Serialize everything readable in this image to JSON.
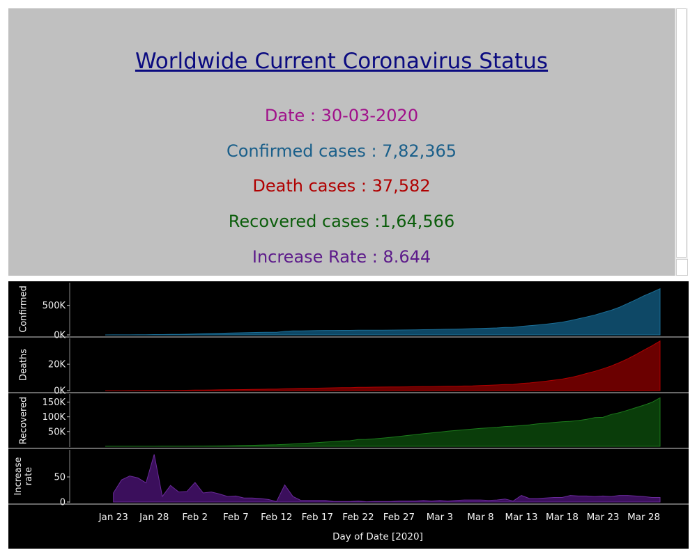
{
  "header": {
    "title": "Worldwide Current Coronavirus Status",
    "date_line": "Date  : 30-03-2020",
    "confirmed_line": "Confirmed cases : 7,82,365",
    "deaths_line": "Death cases :  37,582",
    "recovered_line": "Recovered cases :1,64,566",
    "rate_line": "Increase Rate : 8.644",
    "colors": {
      "title": "#0b0b80",
      "date": "#a0108a",
      "confirmed": "#1a5f8a",
      "deaths": "#b00000",
      "recovered": "#0b5d0b",
      "rate": "#5c1a8a"
    }
  },
  "chart_data": {
    "type": "area",
    "xlabel": "Day of Date [2020]",
    "x_ticks": [
      "Jan 23",
      "Jan 28",
      "Feb 2",
      "Feb 7",
      "Feb 12",
      "Feb 17",
      "Feb 22",
      "Feb 27",
      "Mar 3",
      "Mar 8",
      "Mar 13",
      "Mar 18",
      "Mar 23",
      "Mar 28"
    ],
    "x_start": "Jan 22",
    "x_end": "Mar 30",
    "background": "#000000",
    "grid": false,
    "panels": [
      {
        "name": "Confirmed",
        "ylabel": [
          "Confirmed"
        ],
        "color": "#0e4866",
        "stroke": "#1b6e96",
        "ylim": [
          0,
          850000
        ],
        "yticks": [
          {
            "v": 0,
            "label": "0K"
          },
          {
            "v": 500000,
            "label": "500K"
          }
        ],
        "values": [
          555,
          654,
          941,
          1434,
          2118,
          2927,
          5578,
          6166,
          8234,
          9927,
          12038,
          16787,
          19881,
          23892,
          27635,
          30794,
          34391,
          37120,
          40150,
          42762,
          44802,
          45221,
          60368,
          66885,
          69030,
          71224,
          73258,
          75136,
          75639,
          76197,
          76819,
          78572,
          78958,
          79561,
          80406,
          81388,
          82746,
          84112,
          86011,
          88369,
          90306,
          92840,
          95120,
          97886,
          101801,
          105847,
          109821,
          113590,
          118620,
          125875,
          128352,
          145205,
          156101,
          167454,
          181574,
          197102,
          214821,
          242570,
          272208,
          304507,
          336953,
          378235,
          418045,
          467653,
          529591,
          593291,
          660706,
          720117,
          782365
        ]
      },
      {
        "name": "Deaths",
        "ylabel": [
          "Deaths"
        ],
        "color": "#6b0000",
        "stroke": "#b00000",
        "ylim": [
          0,
          38000
        ],
        "yticks": [
          {
            "v": 0,
            "label": "0K"
          },
          {
            "v": 20000,
            "label": "20K"
          }
        ],
        "values": [
          17,
          18,
          26,
          42,
          56,
          82,
          131,
          133,
          171,
          213,
          259,
          362,
          426,
          492,
          564,
          634,
          719,
          806,
          906,
          1013,
          1113,
          1118,
          1371,
          1523,
          1666,
          1770,
          1868,
          2007,
          2122,
          2247,
          2251,
          2458,
          2469,
          2629,
          2708,
          2770,
          2814,
          2872,
          2941,
          2996,
          3085,
          3160,
          3254,
          3348,
          3460,
          3558,
          3802,
          3988,
          4262,
          4615,
          4720,
          5404,
          5819,
          6440,
          7126,
          7905,
          8733,
          9867,
          11299,
          12973,
          14623,
          16497,
          18615,
          21181,
          23970,
          27198,
          30652,
          33925,
          37582
        ]
      },
      {
        "name": "Recovered",
        "ylabel": [
          "Recovered"
        ],
        "color": "#0a3d0a",
        "stroke": "#1c7a1c",
        "ylim": [
          0,
          170000
        ],
        "yticks": [
          {
            "v": 50000,
            "label": "50K"
          },
          {
            "v": 100000,
            "label": "100K"
          },
          {
            "v": 150000,
            "label": "150K"
          }
        ],
        "values": [
          28,
          30,
          36,
          39,
          52,
          61,
          107,
          126,
          143,
          222,
          284,
          472,
          623,
          852,
          1124,
          1487,
          2011,
          2616,
          3244,
          3946,
          4683,
          5150,
          6295,
          8058,
          9395,
          10865,
          12583,
          14352,
          16121,
          18177,
          18890,
          22886,
          23394,
          25227,
          27905,
          30384,
          33277,
          36711,
          39782,
          42716,
          45602,
          48228,
          51170,
          53796,
          55865,
          58359,
          60694,
          62494,
          64404,
          67003,
          68324,
          70251,
          72624,
          76034,
          78088,
          80840,
          83207,
          84854,
          87256,
          91646,
          97243,
          98334,
          107890,
          113787,
          122150,
          130915,
          139415,
          149082,
          164566
        ]
      },
      {
        "name": "Increase rate",
        "ylabel": [
          "Increase",
          "rate"
        ],
        "color": "#3b0f5c",
        "stroke": "#6a2a9a",
        "ylim": [
          0,
          100
        ],
        "yticks": [
          {
            "v": 0,
            "label": "0"
          },
          {
            "v": 50,
            "label": "50"
          }
        ],
        "values": [
          null,
          18,
          44,
          52,
          48,
          38,
          95,
          11,
          33,
          20,
          21,
          39,
          18,
          20,
          16,
          11,
          12,
          8,
          8,
          7,
          5,
          1,
          34,
          11,
          3,
          3,
          3,
          3,
          1,
          1,
          1,
          2,
          0.5,
          1,
          1,
          1,
          2,
          2,
          2,
          3,
          2,
          3,
          2,
          3,
          4,
          4,
          4,
          3,
          4,
          6,
          2,
          13,
          7,
          7,
          8,
          9,
          9,
          13,
          12,
          12,
          11,
          12,
          11,
          13,
          13,
          12,
          11,
          9,
          9
        ]
      }
    ]
  }
}
